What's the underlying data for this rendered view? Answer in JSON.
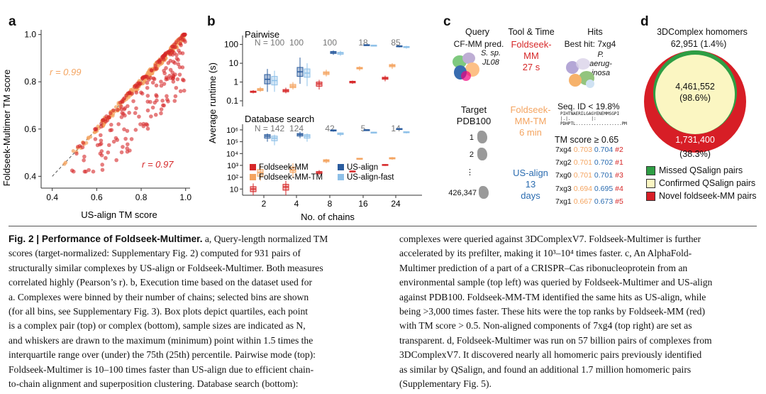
{
  "panel_a": {
    "label": "a",
    "xlabel": "US-align TM score",
    "ylabel": "Foldseek-Multimer TM score",
    "r_orange": "r = 0.99",
    "r_red": "r = 0.97",
    "colors": {
      "orange": "#f4a460",
      "red": "#d62728",
      "dash": "#555555"
    }
  },
  "panel_b": {
    "label": "b",
    "ylabel": "Average runtime (s)",
    "xlabel": "No. of chains",
    "top_title": "Pairwise",
    "bottom_title": "Database search",
    "x_ticks": [
      "2",
      "4",
      "8",
      "16",
      "24"
    ],
    "top_n": [
      "N = 100",
      "100",
      "100",
      "18",
      "85"
    ],
    "bottom_n": [
      "N = 142",
      "124",
      "42",
      "5",
      "14"
    ],
    "top_y_ticks": [
      "100",
      "10",
      "1",
      "0.1"
    ],
    "bottom_y_ticks": [
      "10⁶",
      "10⁵",
      "10⁴",
      "10³",
      "10²",
      "10"
    ],
    "legend": [
      "Foldseek-MM",
      "US-align",
      "Foldseek-MM-TM",
      "US-align-fast"
    ],
    "colors": {
      "fmm": "#d62728",
      "usalign": "#2b5c9e",
      "fmmtm": "#f4a460",
      "usfast": "#8ec0e8"
    }
  },
  "panel_c": {
    "label": "c",
    "col_query": "Query",
    "col_tool": "Tool & Time",
    "col_hits": "Hits",
    "query_name": "CF-MM pred.",
    "query_species": [
      "S. sp.",
      "JL08"
    ],
    "tool1": [
      "Foldseek-",
      "MM"
    ],
    "time1": "27 s",
    "best_hit": "Best hit: 7xg4",
    "hit_species": [
      "P. aerug-",
      "inosa"
    ],
    "target": [
      "Target",
      "PDB100"
    ],
    "tool2": [
      "Foldseek-",
      "MM-TM"
    ],
    "time2": "6 min",
    "tool3": [
      "US-align",
      "13",
      "days"
    ],
    "idx": [
      "1",
      "2",
      "⋮",
      "426,347"
    ],
    "seq_id": "Seq. ID < 19.8%",
    "aln1": "PIHTNAERILGAGYENEMMSGPI",
    "aln2": "|.|.        |:",
    "aln3": "PDHPTL..................PM",
    "tm_header": "TM score ≥ 0.65",
    "tm_rows": [
      {
        "id": "7xg4",
        "a": "0.703",
        "b": "0.704",
        "rank": "#2"
      },
      {
        "id": "7xg2",
        "a": "0.701",
        "b": "0.702",
        "rank": "#1"
      },
      {
        "id": "7xg0",
        "a": "0.701",
        "b": "0.701",
        "rank": "#3"
      },
      {
        "id": "7xg3",
        "a": "0.694",
        "b": "0.695",
        "rank": "#4"
      },
      {
        "id": "7xg1",
        "a": "0.667",
        "b": "0.673",
        "rank": "#5"
      }
    ],
    "colors": {
      "red": "#d62728",
      "orange": "#f4a460",
      "blue": "#2b6cb0"
    }
  },
  "panel_d": {
    "label": "d",
    "title": "3DComplex homomers",
    "top_count": "62,951 (1.4%)",
    "mid_count": "4,461,552",
    "mid_pct": "(98.6%)",
    "bottom_count": "1,731,400",
    "bottom_pct": "(38.3%)",
    "legend": [
      "Missed QSalign pairs",
      "Confirmed QSalign pairs",
      "Novel foldseek-MM pairs"
    ],
    "colors": {
      "green": "#2e9e44",
      "yellow": "#fbf6c2",
      "red": "#d71e26"
    }
  },
  "caption": {
    "fig_label": "Fig. 2 | Performance of Foldseek-Multimer.",
    "left_lines": [
      " a, Query-length normalized TM",
      "scores (target-normalized: Supplementary Fig. 2) computed for 931 pairs of",
      "structurally similar complexes by US-align or Foldseek-Multimer. Both measures",
      "correlated highly (Pearson’s r). b, Execution time based on the dataset used for",
      "a. Complexes were binned by their number of chains; selected bins are shown",
      "(for all bins, see Supplementary Fig. 3). Box plots depict quartiles, each point",
      "is a complex pair (top) or complex (bottom), sample sizes are indicated as N,",
      "and whiskers are drawn to the maximum (minimum) point within 1.5 times the",
      "interquartile range over (under) the 75th (25th) percentile. Pairwise mode (top):",
      "Foldseek-Multimer is 10–100 times faster than US-align due to efficient chain-",
      "to-chain alignment and superposition clustering. Database search (bottom):"
    ],
    "right_lines": [
      "complexes were queried against 3DComplexV7. Foldseek-Multimer is further",
      "accelerated by its prefilter, making it 10³–10⁴ times faster. c, An AlphaFold-",
      "Multimer prediction of a part of a CRISPR–Cas ribonucleoprotein from an",
      "environmental sample (top left) was queried by Foldseek-Multimer and US-align",
      "against PDB100. Foldseek-MM-TM identified the same hits as US-align, while",
      "being >3,000 times faster. These hits were the top ranks by Foldseek-MM (red)",
      "with TM score > 0.5. Non-aligned components of 7xg4 (top right) are set as",
      "transparent. d, Foldseek-Multimer was run on 57 billion pairs of complexes from",
      "3DComplexV7. It discovered nearly all homomeric pairs previously identified",
      "as similar by QSalign, and found an additional 1.7 million homomeric pairs",
      "(Supplementary Fig. 5)."
    ]
  }
}
